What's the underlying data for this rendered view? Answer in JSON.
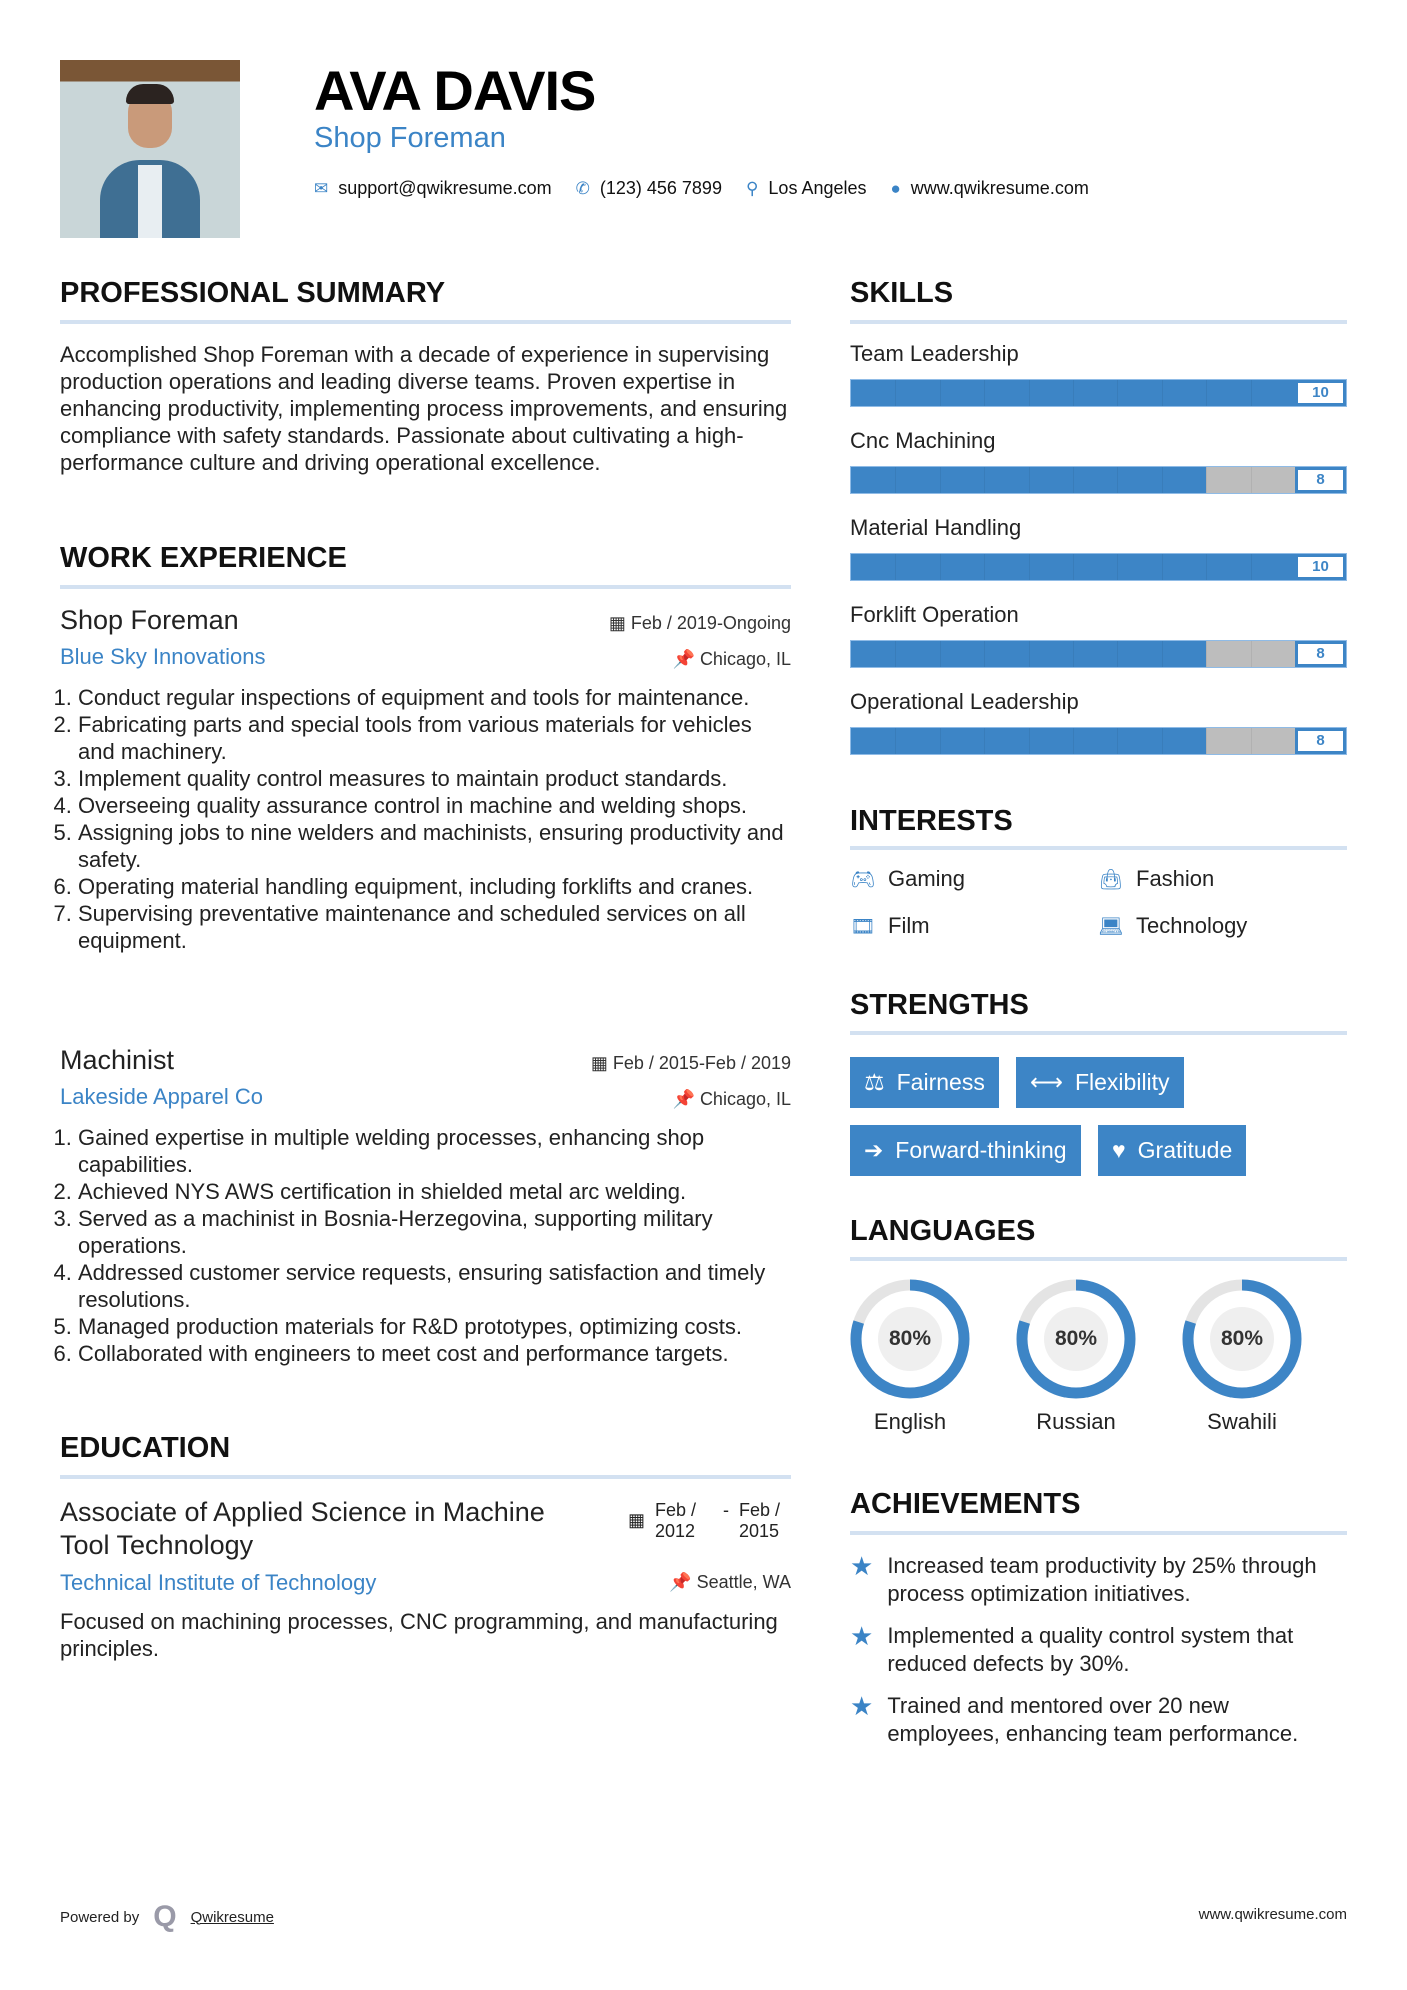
{
  "header": {
    "name": "AVA DAVIS",
    "title": "Shop Foreman",
    "email": "support@qwikresume.com",
    "phone": "(123) 456 7899",
    "location": "Los Angeles",
    "website": "www.qwikresume.com"
  },
  "summary": {
    "heading": "PROFESSIONAL SUMMARY",
    "text": "Accomplished Shop Foreman with a decade of experience in supervising production operations and leading diverse teams. Proven expertise in enhancing productivity, implementing process improvements, and ensuring compliance with safety standards. Passionate about cultivating a high-performance culture and driving operational excellence."
  },
  "experience": {
    "heading": "WORK EXPERIENCE",
    "jobs": [
      {
        "title": "Shop Foreman",
        "dates": "Feb / 2019-Ongoing",
        "company": "Blue Sky Innovations",
        "location": "Chicago, IL",
        "items": [
          "Conduct regular inspections of equipment and tools for maintenance.",
          "Fabricating parts and special tools from various materials for vehicles and machinery.",
          "Implement quality control measures to maintain product standards.",
          "Overseeing quality assurance control in machine and welding shops.",
          "Assigning jobs to nine welders and machinists, ensuring productivity and safety.",
          "Operating material handling equipment, including forklifts and cranes.",
          "Supervising preventative maintenance and scheduled services on all equipment."
        ]
      },
      {
        "title": "Machinist",
        "dates": "Feb / 2015-Feb / 2019",
        "company": "Lakeside Apparel Co",
        "location": "Chicago, IL",
        "items": [
          "Gained expertise in multiple welding processes, enhancing shop capabilities.",
          "Achieved NYS AWS certification in shielded metal arc welding.",
          "Served as a machinist in Bosnia-Herzegovina, supporting military operations.",
          "Addressed customer service requests, ensuring satisfaction and timely resolutions.",
          "Managed production materials for R&D prototypes, optimizing costs.",
          "Collaborated with engineers to meet cost and performance targets."
        ]
      }
    ]
  },
  "education": {
    "heading": "EDUCATION",
    "degree": "Associate of Applied Science in Machine Tool Technology",
    "start": "Feb / 2012",
    "end": "Feb / 2015",
    "school": "Technical Institute of Technology",
    "location": "Seattle, WA",
    "description": "Focused on machining processes, CNC programming, and manufacturing principles."
  },
  "skills": {
    "heading": "SKILLS",
    "max": 10,
    "items": [
      {
        "label": "Team Leadership",
        "value": 10
      },
      {
        "label": "Cnc Machining",
        "value": 8
      },
      {
        "label": "Material Handling",
        "value": 10
      },
      {
        "label": "Forklift Operation",
        "value": 8
      },
      {
        "label": "Operational Leadership",
        "value": 8
      }
    ]
  },
  "interests": {
    "heading": "INTERESTS",
    "items": [
      {
        "label": "Gaming",
        "icon": "gamepad-icon"
      },
      {
        "label": "Fashion",
        "icon": "shopping-bag-icon"
      },
      {
        "label": "Film",
        "icon": "film-icon"
      },
      {
        "label": "Technology",
        "icon": "laptop-icon"
      }
    ]
  },
  "strengths": {
    "heading": "STRENGTHS",
    "items": [
      {
        "label": "Fairness",
        "icon": "balance-scale-icon"
      },
      {
        "label": "Flexibility",
        "icon": "arrows-h-icon"
      },
      {
        "label": "Forward-thinking",
        "icon": "arrow-right-icon"
      },
      {
        "label": "Gratitude",
        "icon": "heart-icon"
      }
    ]
  },
  "languages": {
    "heading": "LANGUAGES",
    "items": [
      {
        "label": "English",
        "percent": 80,
        "display": "80%"
      },
      {
        "label": "Russian",
        "percent": 80,
        "display": "80%"
      },
      {
        "label": "Swahili",
        "percent": 80,
        "display": "80%"
      }
    ]
  },
  "achievements": {
    "heading": "ACHIEVEMENTS",
    "items": [
      "Increased team productivity by 25% through process optimization initiatives.",
      "Implemented a quality control system that reduced defects by 30%.",
      "Trained and mentored over 20 new employees, enhancing team performance."
    ]
  },
  "footer": {
    "powered_by": "Powered by",
    "brand": "Qwikresume",
    "website": "www.qwikresume.com"
  },
  "colors": {
    "accent": "#3d85c6",
    "rule": "#d3e1f1",
    "track": "#bdbdbd"
  }
}
